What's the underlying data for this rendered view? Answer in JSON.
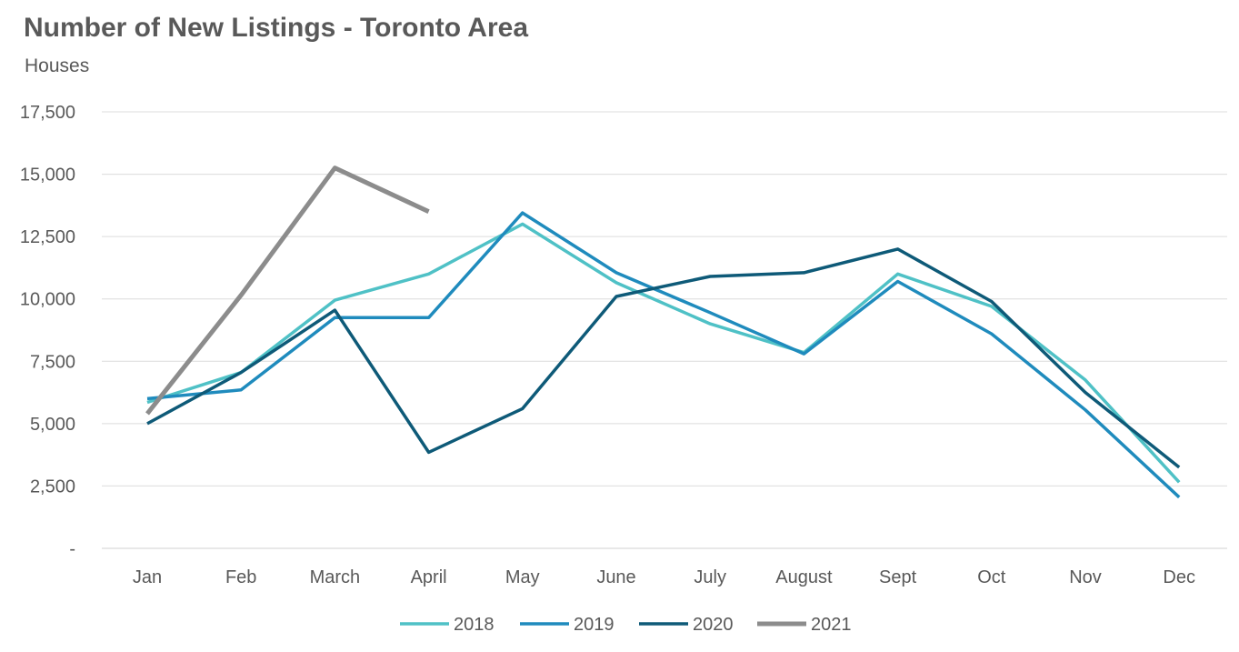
{
  "chart_data": {
    "type": "line",
    "title": "Number of New Listings - Toronto Area",
    "subtitle": "Houses",
    "xlabel": "",
    "ylabel": "",
    "categories": [
      "Jan",
      "Feb",
      "March",
      "April",
      "May",
      "June",
      "July",
      "August",
      "Sept",
      "Oct",
      "Nov",
      "Dec"
    ],
    "ylim": [
      0,
      17500
    ],
    "yticks": [
      0,
      2500,
      5000,
      7500,
      10000,
      12500,
      15000,
      17500
    ],
    "ytick_labels": [
      "-",
      "2,500",
      "5,000",
      "7,500",
      "10,000",
      "12,500",
      "15,000",
      "17,500"
    ],
    "grid": true,
    "legend_position": "bottom",
    "series": [
      {
        "name": "2018",
        "color": "#4fc1c6",
        "values": [
          5850,
          7050,
          9950,
          11000,
          13000,
          10650,
          9000,
          7850,
          11000,
          9700,
          6750,
          2650
        ]
      },
      {
        "name": "2019",
        "color": "#1f8bbd",
        "values": [
          6000,
          6350,
          9250,
          9250,
          13450,
          11050,
          9450,
          7800,
          10700,
          8600,
          5550,
          2050
        ]
      },
      {
        "name": "2020",
        "color": "#0e5a78",
        "values": [
          5000,
          7050,
          9550,
          3850,
          5600,
          10100,
          10900,
          11050,
          12000,
          9900,
          6250,
          3250
        ]
      },
      {
        "name": "2021",
        "color": "#8c8c8c",
        "values": [
          5400,
          10150,
          15250,
          13500,
          null,
          null,
          null,
          null,
          null,
          null,
          null,
          null
        ]
      }
    ]
  }
}
